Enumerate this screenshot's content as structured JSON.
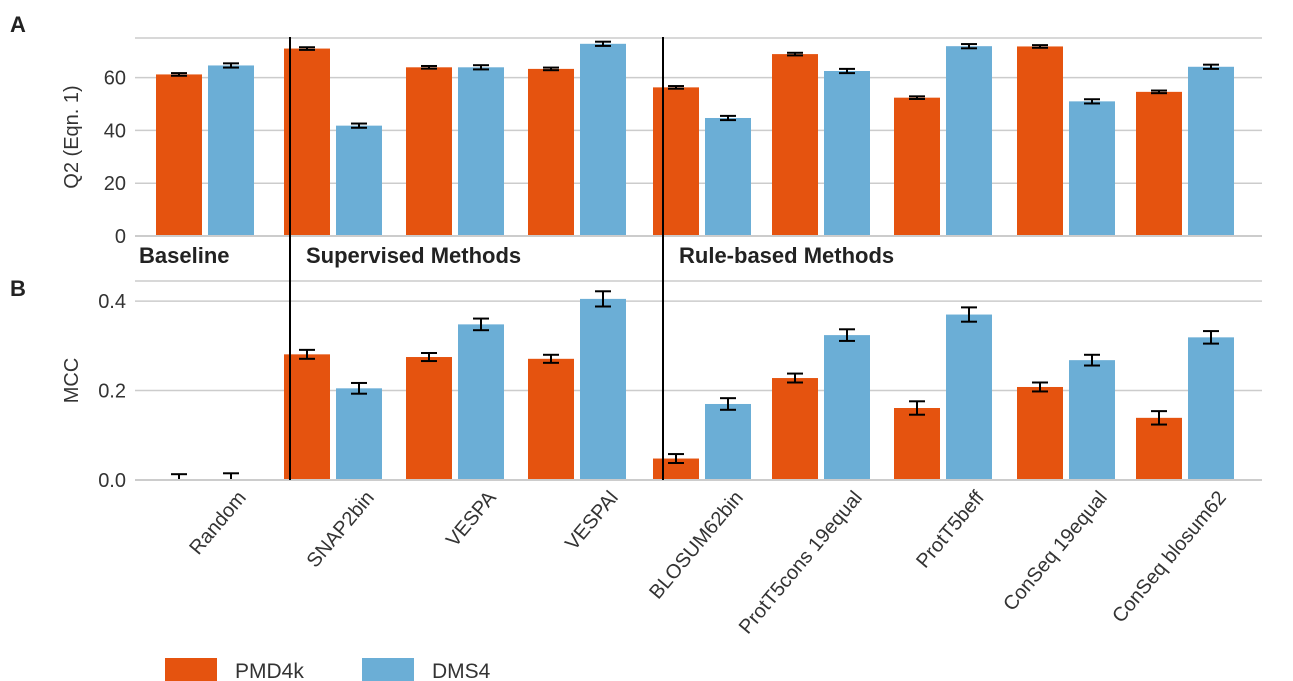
{
  "panels": {
    "A": {
      "letter": "A"
    },
    "B": {
      "letter": "B"
    }
  },
  "group_labels": [
    "Baseline",
    "Supervised Methods",
    "Rule-based Methods"
  ],
  "colors": {
    "PMD4k": "#e5530f",
    "DMS4": "#6baed6",
    "grid": "#cccccc",
    "errorbar": "#000000"
  },
  "chart_data": [
    {
      "type": "bar",
      "panel": "A",
      "ylabel": "Q2 (Eqn. 1)",
      "ylim": [
        0,
        75
      ],
      "yticks": [
        0,
        20,
        40,
        60
      ],
      "grid": true,
      "categories": [
        "Random",
        "SNAP2bin",
        "VESPA",
        "VESPAl",
        "BLOSUM62bin",
        "ProtT5cons 19equal",
        "ProtT5beff",
        "ConSeq 19equal",
        "ConSeq blosum62"
      ],
      "series": [
        {
          "name": "PMD4k",
          "values": [
            61.2,
            71.0,
            63.9,
            63.3,
            56.3,
            68.9,
            52.4,
            71.8,
            54.6
          ],
          "errors": [
            0.5,
            0.5,
            0.5,
            0.5,
            0.5,
            0.5,
            0.5,
            0.5,
            0.5
          ]
        },
        {
          "name": "DMS4",
          "values": [
            64.6,
            41.8,
            63.9,
            72.8,
            44.7,
            62.5,
            71.9,
            51.0,
            64.1
          ],
          "errors": [
            0.8,
            0.8,
            0.8,
            0.8,
            0.8,
            0.8,
            0.8,
            0.8,
            0.8
          ]
        }
      ]
    },
    {
      "type": "bar",
      "panel": "B",
      "ylabel": "MCC",
      "ylim": [
        0,
        0.445
      ],
      "yticks": [
        "0.0",
        "0.2",
        "0.4"
      ],
      "grid": true,
      "categories": [
        "Random",
        "SNAP2bin",
        "VESPA",
        "VESPAl",
        "BLOSUM62bin",
        "ProtT5cons 19equal",
        "ProtT5beff",
        "ConSeq 19equal",
        "ConSeq blosum62"
      ],
      "series": [
        {
          "name": "PMD4k",
          "values": [
            0.0,
            0.281,
            0.275,
            0.271,
            0.048,
            0.228,
            0.161,
            0.208,
            0.139
          ],
          "errors": [
            0.013,
            0.01,
            0.009,
            0.009,
            0.01,
            0.01,
            0.015,
            0.01,
            0.015
          ]
        },
        {
          "name": "DMS4",
          "values": [
            0.0,
            0.205,
            0.348,
            0.405,
            0.17,
            0.324,
            0.37,
            0.268,
            0.319
          ],
          "errors": [
            0.015,
            0.012,
            0.013,
            0.017,
            0.013,
            0.013,
            0.016,
            0.012,
            0.014
          ]
        }
      ]
    }
  ],
  "legend": [
    {
      "label": "PMD4k",
      "color": "#e5530f"
    },
    {
      "label": "DMS4",
      "color": "#6baed6"
    }
  ]
}
